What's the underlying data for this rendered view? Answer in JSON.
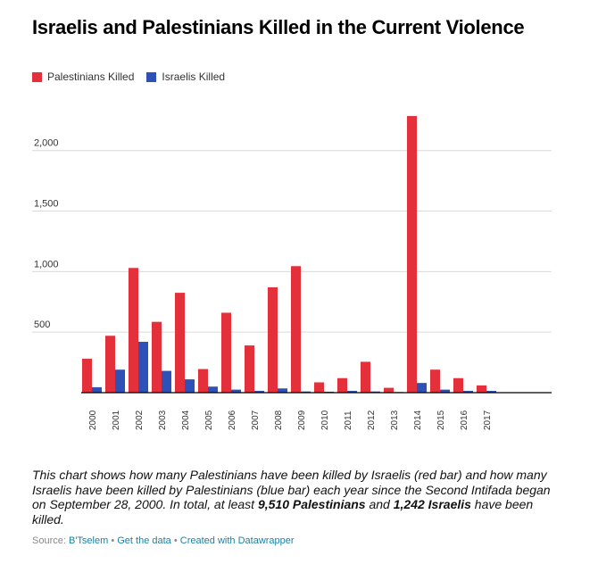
{
  "title": "Israelis and Palestinians Killed in the Current Violence",
  "legend": [
    {
      "label": "Palestinians Killed",
      "color": "#e3303a"
    },
    {
      "label": "Israelis Killed",
      "color": "#2d51b6"
    }
  ],
  "description": {
    "part1": "This chart shows how many Palestinians have been killed by Israelis (red bar) and how many Israelis have been killed by Palestinians (blue bar) each year since the Second Intifada began on September 28, 2000. In total, at least ",
    "bold1": "9,510 Palestinians",
    "part2": " and ",
    "bold2": "1,242 Israelis",
    "part3": " have been killed."
  },
  "footer": {
    "source_label": "Source:",
    "source_link": "B'Tselem",
    "separator": "•",
    "get_data": "Get the data",
    "created_with": "Created with Datawrapper"
  },
  "chart_data": {
    "type": "bar",
    "categories": [
      "2000",
      "2001",
      "2002",
      "2003",
      "2004",
      "2005",
      "2006",
      "2007",
      "2008",
      "2009",
      "2010",
      "2011",
      "2012",
      "2013",
      "2014",
      "2015",
      "2016",
      "2017"
    ],
    "series": [
      {
        "name": "Palestinians Killed",
        "color": "#e3303a",
        "values": [
          280,
          470,
          1030,
          585,
          825,
          195,
          660,
          390,
          870,
          1045,
          85,
          120,
          255,
          40,
          2285,
          190,
          120,
          60
        ]
      },
      {
        "name": "Israelis Killed",
        "color": "#2d51b6",
        "values": [
          45,
          190,
          420,
          180,
          110,
          50,
          25,
          15,
          35,
          10,
          8,
          15,
          10,
          5,
          80,
          25,
          15,
          15
        ]
      }
    ],
    "ylim": [
      0,
      2300
    ],
    "yticks": [
      500,
      1000,
      1500,
      2000
    ],
    "ytick_labels": [
      "500",
      "1,000",
      "1,500",
      "2,000"
    ],
    "grid": true,
    "legend_position": "top-left"
  }
}
